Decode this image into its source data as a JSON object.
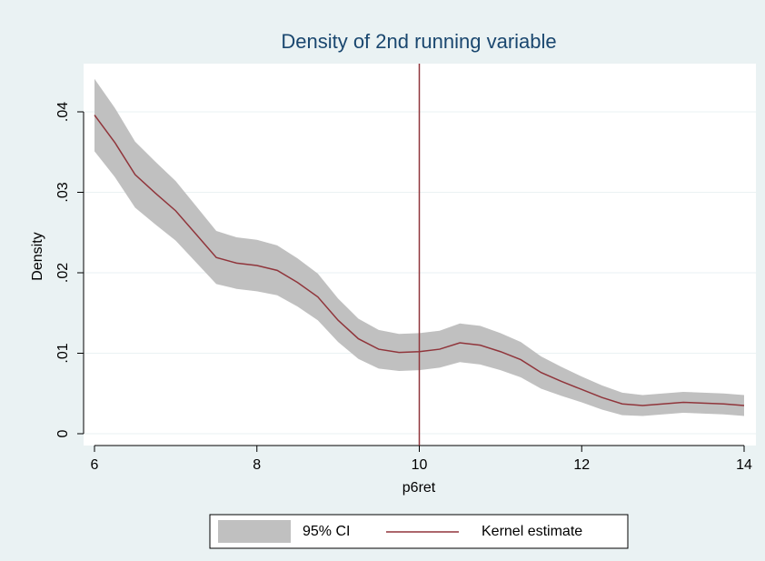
{
  "chart_data": {
    "type": "line",
    "title": "Density of 2nd running variable",
    "xlabel": "p6ret",
    "ylabel": "Density",
    "x": [
      6,
      6.25,
      6.5,
      6.75,
      7,
      7.25,
      7.5,
      7.75,
      8,
      8.25,
      8.5,
      8.75,
      9,
      9.25,
      9.5,
      9.75,
      10,
      10.25,
      10.5,
      10.75,
      11,
      11.25,
      11.5,
      11.75,
      12,
      12.25,
      12.5,
      12.75,
      13,
      13.25,
      13.5,
      13.75,
      14
    ],
    "series": [
      {
        "name": "95% CI",
        "color": "#c0c0c0",
        "lower": [
          0.0351,
          0.0319,
          0.0281,
          0.026,
          0.024,
          0.0213,
          0.0186,
          0.018,
          0.0177,
          0.0172,
          0.0158,
          0.0141,
          0.0114,
          0.0093,
          0.0081,
          0.0078,
          0.0079,
          0.0082,
          0.0089,
          0.0086,
          0.0079,
          0.007,
          0.0056,
          0.0047,
          0.0039,
          0.003,
          0.0023,
          0.0022,
          0.0024,
          0.0026,
          0.0025,
          0.0024,
          0.0022
        ],
        "upper": [
          0.0441,
          0.0405,
          0.0363,
          0.0338,
          0.0314,
          0.0283,
          0.0252,
          0.0244,
          0.0241,
          0.0234,
          0.0218,
          0.0199,
          0.0168,
          0.0143,
          0.0129,
          0.0124,
          0.0125,
          0.0128,
          0.0137,
          0.0134,
          0.0125,
          0.0114,
          0.0096,
          0.0083,
          0.0071,
          0.006,
          0.0051,
          0.0048,
          0.005,
          0.0052,
          0.0051,
          0.005,
          0.0048
        ]
      },
      {
        "name": "Kernel estimate",
        "color": "#90353b",
        "values": [
          0.0396,
          0.0362,
          0.0322,
          0.0299,
          0.0277,
          0.0248,
          0.0219,
          0.0212,
          0.0209,
          0.0203,
          0.0188,
          0.017,
          0.0141,
          0.0118,
          0.0105,
          0.0101,
          0.0102,
          0.0105,
          0.0113,
          0.011,
          0.0102,
          0.0092,
          0.0076,
          0.0065,
          0.0055,
          0.0045,
          0.0037,
          0.0035,
          0.0037,
          0.0039,
          0.0038,
          0.0037,
          0.0035
        ]
      }
    ],
    "xline": 10,
    "xline_color": "#90353b",
    "xlim": [
      6,
      14
    ],
    "xticks": [
      6,
      8,
      10,
      12,
      14
    ],
    "ylim": [
      0,
      0.04
    ],
    "yticks": [
      0,
      {
        "value": 0.01,
        "label": ".01"
      },
      {
        "value": 0.02,
        "label": ".02"
      },
      {
        "value": 0.03,
        "label": ".03"
      },
      {
        "value": 0.04,
        "label": ".04"
      }
    ],
    "grid": true,
    "legend": "bottom"
  }
}
